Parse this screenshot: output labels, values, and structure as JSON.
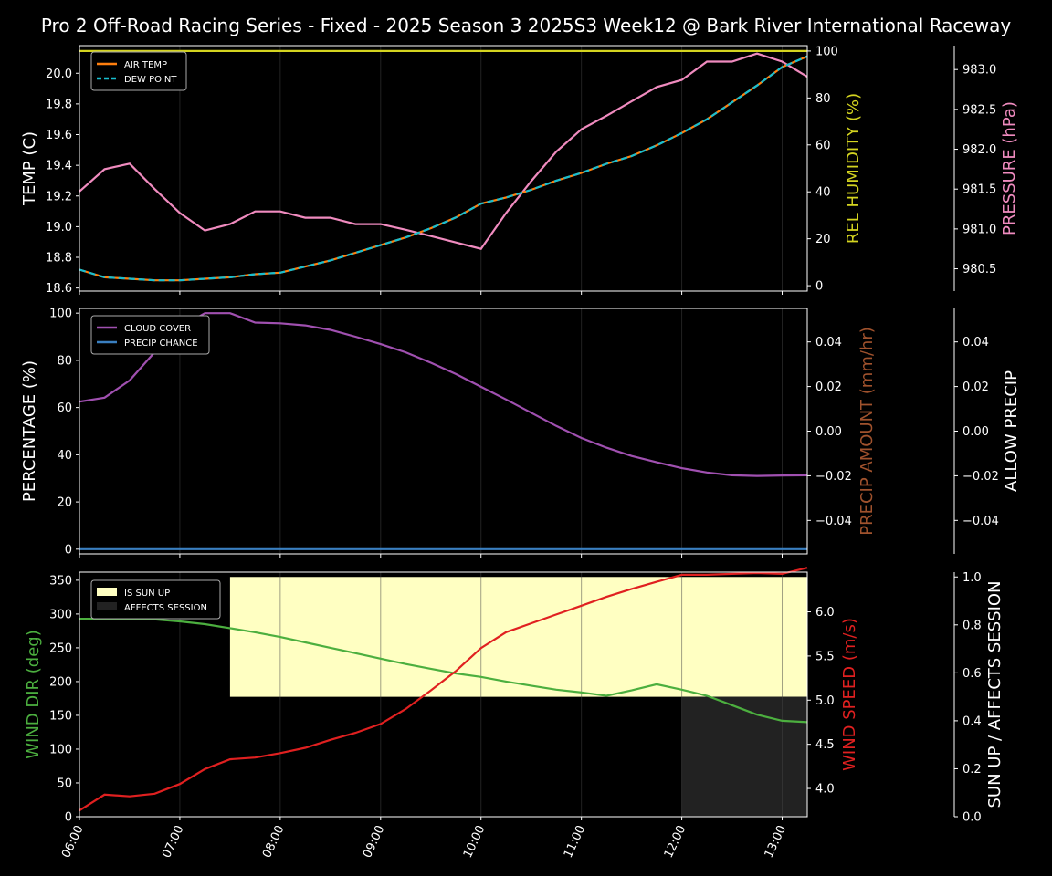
{
  "title": "Pro 2 Off-Road Racing Series - Fixed - 2025 Season 3 2025S3 Week12 @ Bark River International Raceway",
  "colors": {
    "background": "#000000",
    "axes": "#ffffff",
    "air_temp": "#ff7f0e",
    "dew_point": "#17becf",
    "humidity": "#d4d420",
    "pressure": "#f08bbf",
    "cloud": "#a050b0",
    "precip_chance": "#3a7fc0",
    "precip_amount": "#a0522d",
    "wind_dir": "#4caf3f",
    "wind_speed": "#e02020",
    "sun": "#ffffc2",
    "affects": "#222222"
  },
  "chart_data": {
    "x": [
      "06:00",
      "06:15",
      "06:30",
      "06:45",
      "07:00",
      "07:15",
      "07:30",
      "07:45",
      "08:00",
      "08:15",
      "08:30",
      "08:45",
      "09:00",
      "09:15",
      "09:30",
      "09:45",
      "10:00",
      "10:15",
      "10:30",
      "10:45",
      "11:00",
      "11:15",
      "11:30",
      "11:45",
      "12:00",
      "12:15",
      "12:30",
      "12:45",
      "13:00",
      "13:15"
    ],
    "xticks": [
      "06:00",
      "07:00",
      "08:00",
      "09:00",
      "10:00",
      "11:00",
      "12:00",
      "13:00"
    ],
    "panels": [
      {
        "type": "line",
        "ylabel": "TEMP (C)",
        "ylim": [
          18.58,
          20.18
        ],
        "yticks": [
          "18.6",
          "18.8",
          "19.0",
          "19.2",
          "19.4",
          "19.6",
          "19.8",
          "20.0"
        ],
        "legend": [
          "AIR TEMP",
          "DEW POINT"
        ],
        "series": [
          {
            "name": "AIR TEMP",
            "values": [
              18.72,
              18.67,
              18.66,
              18.65,
              18.65,
              18.66,
              18.67,
              18.69,
              18.7,
              18.74,
              18.78,
              18.83,
              18.88,
              18.93,
              18.99,
              19.06,
              19.15,
              19.19,
              19.24,
              19.3,
              19.35,
              19.41,
              19.46,
              19.53,
              19.61,
              19.7,
              19.81,
              19.92,
              20.04,
              20.11
            ]
          },
          {
            "name": "DEW POINT",
            "values": [
              18.72,
              18.67,
              18.66,
              18.65,
              18.65,
              18.66,
              18.67,
              18.69,
              18.7,
              18.74,
              18.78,
              18.83,
              18.88,
              18.93,
              18.99,
              19.06,
              19.15,
              19.19,
              19.24,
              19.3,
              19.35,
              19.41,
              19.46,
              19.53,
              19.61,
              19.7,
              19.81,
              19.92,
              20.04,
              20.11
            ]
          }
        ],
        "humidity": {
          "ylabel": "REL HUMIDITY (%)",
          "ylim": [
            -2.3,
            102.3
          ],
          "yticks": [
            "0",
            "20",
            "40",
            "60",
            "80",
            "100"
          ],
          "values": [
            100,
            100,
            100,
            100,
            100,
            100,
            100,
            100,
            100,
            100,
            100,
            100,
            100,
            100,
            100,
            100,
            100,
            100,
            100,
            100,
            100,
            100,
            100,
            100,
            100,
            100,
            100,
            100,
            100,
            100
          ]
        },
        "pressure": {
          "ylabel": "PRESSURE (hPa)",
          "ylim": [
            980.22,
            983.3
          ],
          "yticks": [
            "980.5",
            "981.0",
            "981.5",
            "982.0",
            "982.5",
            "983.0"
          ],
          "values": [
            981.47,
            981.75,
            981.82,
            981.5,
            981.2,
            980.98,
            981.06,
            981.22,
            981.22,
            981.14,
            981.14,
            981.06,
            981.06,
            980.99,
            980.91,
            980.83,
            980.75,
            981.2,
            981.6,
            981.97,
            982.25,
            982.42,
            982.6,
            982.78,
            982.87,
            983.1,
            983.1,
            983.2,
            983.1,
            982.91
          ]
        }
      },
      {
        "type": "line",
        "ylabel": "PERCENTAGE (%)",
        "ylim": [
          -2,
          102
        ],
        "yticks": [
          "0",
          "20",
          "40",
          "60",
          "80",
          "100"
        ],
        "legend": [
          "CLOUD COVER",
          "PRECIP CHANCE"
        ],
        "series": [
          {
            "name": "CLOUD COVER",
            "values": [
              62.5,
              64.2,
              71.5,
              83.5,
              94.0,
              100,
              100,
              96.0,
              95.7,
              94.8,
              92.9,
              90.0,
              86.9,
              83.4,
              79.0,
              74.2,
              68.8,
              63.4,
              57.8,
              52.2,
              47.1,
              43.0,
              39.5,
              36.8,
              34.3,
              32.5,
              31.3,
              31.0,
              31.2,
              31.3
            ]
          },
          {
            "name": "PRECIP CHANCE",
            "values": [
              0,
              0,
              0,
              0,
              0,
              0,
              0,
              0,
              0,
              0,
              0,
              0,
              0,
              0,
              0,
              0,
              0,
              0,
              0,
              0,
              0,
              0,
              0,
              0,
              0,
              0,
              0,
              0,
              0,
              0
            ]
          }
        ],
        "precip_amount": {
          "ylabel": "PRECIP AMOUNT (mm/hr)",
          "ylim": [
            -0.055,
            0.055
          ],
          "yticks": [
            "−0.04",
            "−0.02",
            "0.00",
            "0.02",
            "0.04"
          ],
          "values": [
            0,
            0,
            0,
            0,
            0,
            0,
            0,
            0,
            0,
            0,
            0,
            0,
            0,
            0,
            0,
            0,
            0,
            0,
            0,
            0,
            0,
            0,
            0,
            0,
            0,
            0,
            0,
            0,
            0,
            0
          ]
        },
        "allow_precip": {
          "ylabel": "ALLOW PRECIP",
          "ylim": [
            -0.055,
            0.055
          ],
          "yticks": [
            "−0.04",
            "−0.02",
            "0.00",
            "0.02",
            "0.04"
          ]
        }
      },
      {
        "type": "line",
        "ylabel": "WIND DIR (deg)",
        "ylim": [
          0,
          362
        ],
        "yticks": [
          "0",
          "50",
          "100",
          "150",
          "200",
          "250",
          "300",
          "350"
        ],
        "legend": [
          "IS SUN UP",
          "AFFECTS SESSION"
        ],
        "series": [
          {
            "name": "WIND DIR",
            "values": [
              293,
              293,
              293,
              292,
              289,
              285,
              279,
              273,
              266,
              258,
              250,
              242,
              234,
              226,
              219,
              212,
              207,
              200,
              194,
              188,
              184,
              179,
              187,
              196,
              188,
              179,
              165,
              151,
              142,
              140
            ]
          },
          {
            "name": "WIND SPEED",
            "values": [
              3.75,
              3.93,
              3.91,
              3.94,
              4.05,
              4.22,
              4.33,
              4.35,
              4.4,
              4.46,
              4.55,
              4.63,
              4.73,
              4.9,
              5.11,
              5.33,
              5.59,
              5.77,
              5.87,
              5.97,
              6.07,
              6.17,
              6.26,
              6.34,
              6.42,
              6.42,
              6.43,
              6.44,
              6.43,
              6.5
            ]
          }
        ],
        "wind_speed": {
          "ylabel": "WIND SPEED (m/s)",
          "ylim": [
            3.68,
            6.45
          ],
          "yticks": [
            "4.0",
            "4.5",
            "5.0",
            "5.5",
            "6.0"
          ]
        },
        "sun": {
          "ylabel": "SUN UP / AFFECTS SESSION",
          "ylim": [
            0,
            1.02
          ],
          "yticks": [
            "0.0",
            "0.2",
            "0.4",
            "0.6",
            "0.8",
            "1.0"
          ],
          "sun_up_from": "07:30",
          "sun_up_value": 1.0,
          "sun_up_base": 0.5,
          "affects_from": "12:00",
          "affects_value": 0.5
        }
      }
    ]
  }
}
